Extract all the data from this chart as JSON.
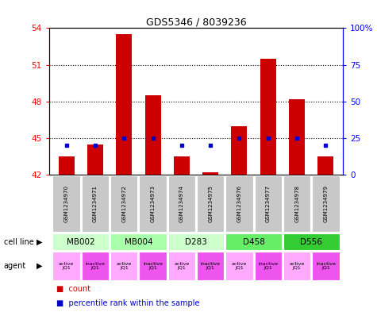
{
  "title": "GDS5346 / 8039236",
  "samples": [
    "GSM1234970",
    "GSM1234971",
    "GSM1234972",
    "GSM1234973",
    "GSM1234974",
    "GSM1234975",
    "GSM1234976",
    "GSM1234977",
    "GSM1234978",
    "GSM1234979"
  ],
  "bar_values": [
    43.5,
    44.5,
    53.5,
    48.5,
    43.5,
    42.2,
    46.0,
    51.5,
    48.2,
    43.5
  ],
  "bar_base": 42.0,
  "dot_values": [
    20,
    20,
    25,
    25,
    20,
    20,
    25,
    25,
    25,
    20
  ],
  "ylim_left": [
    42,
    54
  ],
  "ylim_right": [
    0,
    100
  ],
  "yticks_left": [
    42,
    45,
    48,
    51,
    54
  ],
  "yticks_right": [
    0,
    25,
    50,
    75,
    100
  ],
  "ytick_labels_right": [
    "0",
    "25",
    "50",
    "75",
    "100%"
  ],
  "hlines": [
    45,
    48,
    51
  ],
  "bar_color": "#cc0000",
  "dot_color": "#0000cc",
  "cell_lines": [
    {
      "label": "MB002",
      "cols": [
        0,
        1
      ],
      "color": "#ccffcc"
    },
    {
      "label": "MB004",
      "cols": [
        2,
        3
      ],
      "color": "#aaffaa"
    },
    {
      "label": "D283",
      "cols": [
        4,
        5
      ],
      "color": "#ccffcc"
    },
    {
      "label": "D458",
      "cols": [
        6,
        7
      ],
      "color": "#66ee66"
    },
    {
      "label": "D556",
      "cols": [
        8,
        9
      ],
      "color": "#33cc33"
    }
  ],
  "agents": [
    {
      "label": "active\nJQ1",
      "col": 0,
      "color": "#ffaaff"
    },
    {
      "label": "inactive\nJQ1",
      "col": 1,
      "color": "#ee55ee"
    },
    {
      "label": "active\nJQ1",
      "col": 2,
      "color": "#ffaaff"
    },
    {
      "label": "inactive\nJQ1",
      "col": 3,
      "color": "#ee55ee"
    },
    {
      "label": "active\nJQ1",
      "col": 4,
      "color": "#ffaaff"
    },
    {
      "label": "inactive\nJQ1",
      "col": 5,
      "color": "#ee55ee"
    },
    {
      "label": "active\nJQ1",
      "col": 6,
      "color": "#ffaaff"
    },
    {
      "label": "inactive\nJQ1",
      "col": 7,
      "color": "#ee55ee"
    },
    {
      "label": "active\nJQ1",
      "col": 8,
      "color": "#ffaaff"
    },
    {
      "label": "inactive\nJQ1",
      "col": 9,
      "color": "#ee55ee"
    }
  ],
  "gray_color": "#c8c8c8",
  "fig_width": 4.75,
  "fig_height": 3.93,
  "dpi": 100
}
